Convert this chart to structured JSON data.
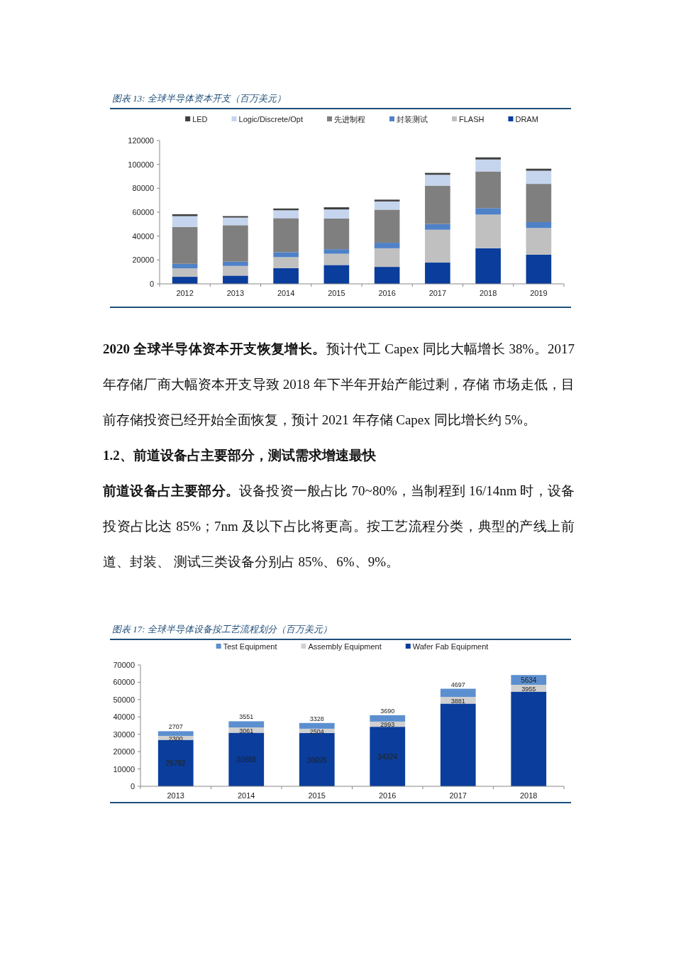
{
  "chart_data": [
    {
      "type": "bar",
      "stacked": true,
      "title": "图表 13:  全球半导体资本开支（百万美元）",
      "categories": [
        "2012",
        "2013",
        "2014",
        "2015",
        "2016",
        "2017",
        "2018",
        "2019"
      ],
      "ylim": [
        0,
        120000
      ],
      "yticks": [
        0,
        20000,
        40000,
        60000,
        80000,
        100000,
        120000
      ],
      "grid": false,
      "legend": "top",
      "series": [
        {
          "name": "DRAM",
          "color": "#0a3d9c",
          "values": [
            5900,
            6900,
            13200,
            15800,
            14200,
            17800,
            29800,
            24400
          ]
        },
        {
          "name": "FLASH",
          "color": "#c0c0c0",
          "values": [
            7100,
            8100,
            9200,
            9400,
            15600,
            27500,
            28200,
            22400
          ]
        },
        {
          "name": "封装测试",
          "color": "#4f81c7",
          "values": [
            3800,
            3600,
            4100,
            3800,
            4600,
            4800,
            5400,
            4900
          ]
        },
        {
          "name": "先进制程",
          "color": "#7f7f7f",
          "values": [
            30800,
            30500,
            28500,
            25700,
            27700,
            32100,
            30700,
            32000
          ]
        },
        {
          "name": "Logic/Discrete/Opt",
          "color": "#c5d5ee",
          "values": [
            9100,
            6400,
            6600,
            7600,
            6900,
            9100,
            10000,
            11000
          ]
        },
        {
          "name": "LED",
          "color": "#404040",
          "values": [
            1600,
            1200,
            1500,
            1800,
            1500,
            1600,
            1800,
            1700
          ]
        }
      ],
      "annotations": [
        "2020 全球半导体资本开支恢复增长。",
        "预计代工 Capex 同比大幅增长 38%。2017 年存储厂商大幅资本开支导致 2018 年下半年开始产能过剩，存储 市场走低，目前存储投资已经开始全面恢复，预计 2021 年存储 Capex 同比增长约 5%。",
        "1.2、前道设备占主要部分，测试需求增速最快",
        "前道设备占主要部分。",
        "设备投资一般占比 70~80%，当制程到 16/14nm 时，设备投资占比达 85%；7nm 及以下占比将更高。按工艺流程分类，典型的产线上前道、封装、 测试三类设备分别占 85%、6%、9%。"
      ]
    },
    {
      "type": "bar",
      "stacked": true,
      "title": "图表 17:  全球半导体设备按工艺流程划分（百万美元）",
      "categories": [
        "2013",
        "2014",
        "2015",
        "2016",
        "2017",
        "2018"
      ],
      "ylim": [
        0,
        70000
      ],
      "yticks": [
        0,
        10000,
        20000,
        30000,
        40000,
        50000,
        60000,
        70000
      ],
      "grid": false,
      "legend": "top",
      "series": [
        {
          "name": "Wafer Fab Equipment",
          "color": "#0a3d9c",
          "values": [
            26782,
            30888,
            30695,
            34324,
            47700,
            54600
          ],
          "value_labels": [
            "26782",
            "30888",
            "30695",
            "34324",
            null,
            null
          ]
        },
        {
          "name": "Assembly Equipment",
          "color": "#d0d0d0",
          "values": [
            2300,
            3061,
            2504,
            2993,
            3881,
            3955
          ],
          "value_labels": [
            "2300",
            "3061",
            "2504",
            "2993",
            "3881",
            "3955"
          ]
        },
        {
          "name": "Test Equipment",
          "color": "#5b8fd0",
          "values": [
            2707,
            3551,
            3328,
            3690,
            4697,
            5634
          ],
          "value_labels": [
            "2707",
            "3551",
            "3328",
            "3690",
            "4697",
            "5634"
          ]
        }
      ]
    }
  ]
}
